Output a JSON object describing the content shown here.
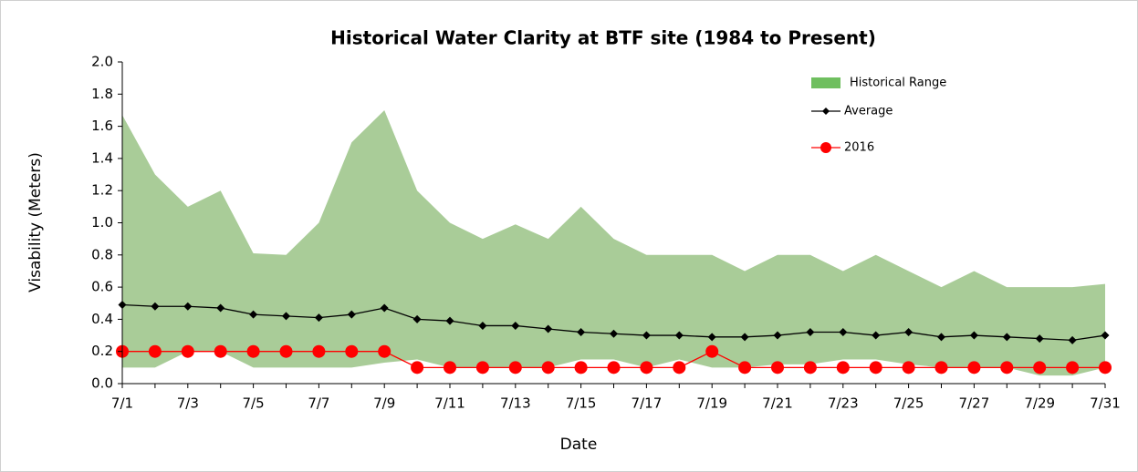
{
  "chart_data": {
    "type": "line",
    "title": "Historical Water Clarity at BTF site (1984 to Present)",
    "x_label": "Date",
    "y_label": "Visability (Meters)",
    "categories": [
      "7/1",
      null,
      "7/3",
      null,
      "7/5",
      null,
      "7/7",
      null,
      "7/9",
      null,
      "7/11",
      null,
      "7/13",
      null,
      "7/15",
      null,
      "7/17",
      null,
      "7/19",
      null,
      "7/21",
      null,
      "7/23",
      null,
      "7/25",
      null,
      "7/27",
      null,
      "7/29",
      null,
      "7/31"
    ],
    "ylim": [
      0,
      2
    ],
    "yticks": [
      {
        "value": 0,
        "label": "0.0"
      },
      {
        "value": 0.2,
        "label": "0.2"
      },
      {
        "value": 0.4,
        "label": "0.4"
      },
      {
        "value": 0.6,
        "label": "0.6"
      },
      {
        "value": 0.8,
        "label": "0.8"
      },
      {
        "value": 1,
        "label": "1.0"
      },
      {
        "value": 1.2,
        "label": "1.2"
      },
      {
        "value": 1.4,
        "label": "1.4"
      },
      {
        "value": 1.6,
        "label": "1.6"
      },
      {
        "value": 1.8,
        "label": "1.8"
      },
      {
        "value": 2,
        "label": "2.0"
      }
    ],
    "series": [
      {
        "name": "Historical Range",
        "type": "range",
        "color": "#a9cc98",
        "high": [
          1.67,
          1.3,
          1.1,
          1.2,
          0.81,
          0.8,
          1.0,
          1.5,
          1.7,
          1.2,
          1.0,
          0.9,
          0.99,
          0.9,
          1.1,
          0.9,
          0.8,
          0.8,
          0.8,
          0.7,
          0.8,
          0.8,
          0.7,
          0.8,
          0.7,
          0.6,
          0.7,
          0.6,
          0.6,
          0.6,
          0.62
        ],
        "low": [
          0.1,
          0.1,
          0.2,
          0.2,
          0.1,
          0.1,
          0.1,
          0.1,
          0.13,
          0.15,
          0.1,
          0.1,
          0.1,
          0.1,
          0.15,
          0.15,
          0.1,
          0.15,
          0.1,
          0.1,
          0.12,
          0.12,
          0.15,
          0.15,
          0.12,
          0.1,
          0.1,
          0.1,
          0.05,
          0.05,
          0.1
        ]
      },
      {
        "name": "Average",
        "type": "line",
        "marker": "diamond",
        "color": "#000000",
        "values": [
          0.49,
          0.48,
          0.48,
          0.47,
          0.43,
          0.42,
          0.41,
          0.43,
          0.47,
          0.4,
          0.39,
          0.36,
          0.36,
          0.34,
          0.32,
          0.31,
          0.3,
          0.3,
          0.29,
          0.29,
          0.3,
          0.32,
          0.32,
          0.3,
          0.32,
          0.29,
          0.3,
          0.29,
          0.28,
          0.27,
          0.3
        ]
      },
      {
        "name": "2016",
        "type": "line",
        "marker": "circle",
        "color": "#ff0000",
        "values": [
          0.2,
          0.2,
          0.2,
          0.2,
          0.2,
          0.2,
          0.2,
          0.2,
          0.2,
          0.1,
          0.1,
          0.1,
          0.1,
          0.1,
          0.1,
          0.1,
          0.1,
          0.1,
          0.2,
          0.1,
          0.1,
          0.1,
          0.1,
          0.1,
          0.1,
          0.1,
          0.1,
          0.1,
          0.1,
          0.1,
          0.1
        ]
      }
    ]
  }
}
